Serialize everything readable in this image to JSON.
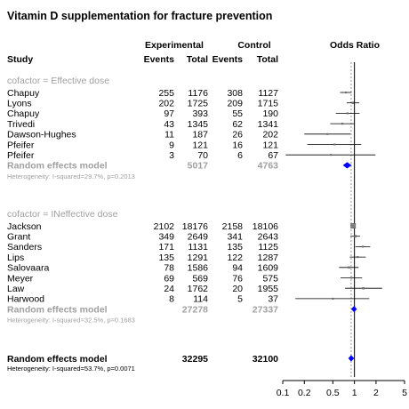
{
  "chart_data": {
    "type": "forest",
    "title": "Vitamin D supplementation for fracture prevention",
    "header": {
      "experimental": "Experimental",
      "control": "Control",
      "study": "Study",
      "events": "Events",
      "total": "Total",
      "odds_ratio": "Odds Ratio"
    },
    "x_scale": "log",
    "xlim": [
      0.1,
      5
    ],
    "x_ticks": [
      "0.1",
      "0.2",
      "0.5",
      "1",
      "2",
      "5"
    ],
    "null_value": 1,
    "subgroups": [
      {
        "label": "cofactor = Effective dose",
        "studies": [
          {
            "study": "Chapuy",
            "e_events": "255",
            "e_total": "1176",
            "c_events": "308",
            "c_total": "1127",
            "or": 0.76,
            "lo": 0.63,
            "hi": 0.91
          },
          {
            "study": "Lyons",
            "e_events": "202",
            "e_total": "1725",
            "c_events": "209",
            "c_total": "1715",
            "or": 0.95,
            "lo": 0.78,
            "hi": 1.17
          },
          {
            "study": "Chapuy",
            "e_events": "97",
            "e_total": "393",
            "c_events": "55",
            "c_total": "190",
            "or": 0.8,
            "lo": 0.55,
            "hi": 1.18
          },
          {
            "study": "Trivedi",
            "e_events": "43",
            "e_total": "1345",
            "c_events": "62",
            "c_total": "1341",
            "or": 0.68,
            "lo": 0.46,
            "hi": 1.01
          },
          {
            "study": "Dawson-Hughes",
            "e_events": "11",
            "e_total": "187",
            "c_events": "26",
            "c_total": "202",
            "or": 0.42,
            "lo": 0.2,
            "hi": 0.88
          },
          {
            "study": "Pfeifer",
            "e_events": "9",
            "e_total": "121",
            "c_events": "16",
            "c_total": "121",
            "or": 0.53,
            "lo": 0.22,
            "hi": 1.24
          },
          {
            "study": "Pfeifer",
            "e_events": "3",
            "e_total": "70",
            "c_events": "6",
            "c_total": "67",
            "or": 0.47,
            "lo": 0.11,
            "hi": 1.96
          }
        ],
        "re_label": "Random effects model",
        "re_e_total": "5017",
        "re_c_total": "4763",
        "re_or": 0.79,
        "re_lo": 0.7,
        "re_hi": 0.9,
        "heterogeneity": "Heterogeneity: I-squared=29.7%, p=0.2013"
      },
      {
        "label": "cofactor = INeffective dose",
        "studies": [
          {
            "study": "Jackson",
            "e_events": "2102",
            "e_total": "18176",
            "c_events": "2158",
            "c_total": "18106",
            "or": 0.96,
            "lo": 0.9,
            "hi": 1.02
          },
          {
            "study": "Grant",
            "e_events": "349",
            "e_total": "2649",
            "c_events": "341",
            "c_total": "2643",
            "or": 1.03,
            "lo": 0.88,
            "hi": 1.2
          },
          {
            "study": "Sanders",
            "e_events": "171",
            "e_total": "1131",
            "c_events": "135",
            "c_total": "1125",
            "or": 1.31,
            "lo": 1.03,
            "hi": 1.66
          },
          {
            "study": "Lips",
            "e_events": "135",
            "e_total": "1291",
            "c_events": "122",
            "c_total": "1287",
            "or": 1.11,
            "lo": 0.86,
            "hi": 1.44
          },
          {
            "study": "Salovaara",
            "e_events": "78",
            "e_total": "1586",
            "c_events": "94",
            "c_total": "1609",
            "or": 0.84,
            "lo": 0.61,
            "hi": 1.14
          },
          {
            "study": "Meyer",
            "e_events": "69",
            "e_total": "569",
            "c_events": "76",
            "c_total": "575",
            "or": 0.91,
            "lo": 0.64,
            "hi": 1.28
          },
          {
            "study": "Law",
            "e_events": "24",
            "e_total": "1762",
            "c_events": "20",
            "c_total": "1955",
            "or": 1.33,
            "lo": 0.74,
            "hi": 2.43
          },
          {
            "study": "Harwood",
            "e_events": "8",
            "e_total": "114",
            "c_events": "5",
            "c_total": "37",
            "or": 0.5,
            "lo": 0.15,
            "hi": 1.61
          }
        ],
        "re_label": "Random effects model",
        "re_e_total": "27278",
        "re_c_total": "27337",
        "re_or": 0.99,
        "re_lo": 0.91,
        "re_hi": 1.07,
        "heterogeneity": "Heterogeneity: I-squared=32.5%, p=0.1683"
      }
    ],
    "overall": {
      "label": "Random effects model",
      "e_total": "32295",
      "c_total": "32100",
      "or": 0.9,
      "lo": 0.83,
      "hi": 0.98,
      "heterogeneity": "Heterogeneity: I-squared=53.7%, p=0.0071"
    },
    "colors": {
      "diamond": "#0000ff",
      "subgroup_text": "#a0a0a0",
      "square": "#808080",
      "dashed_line": "#808080"
    }
  }
}
